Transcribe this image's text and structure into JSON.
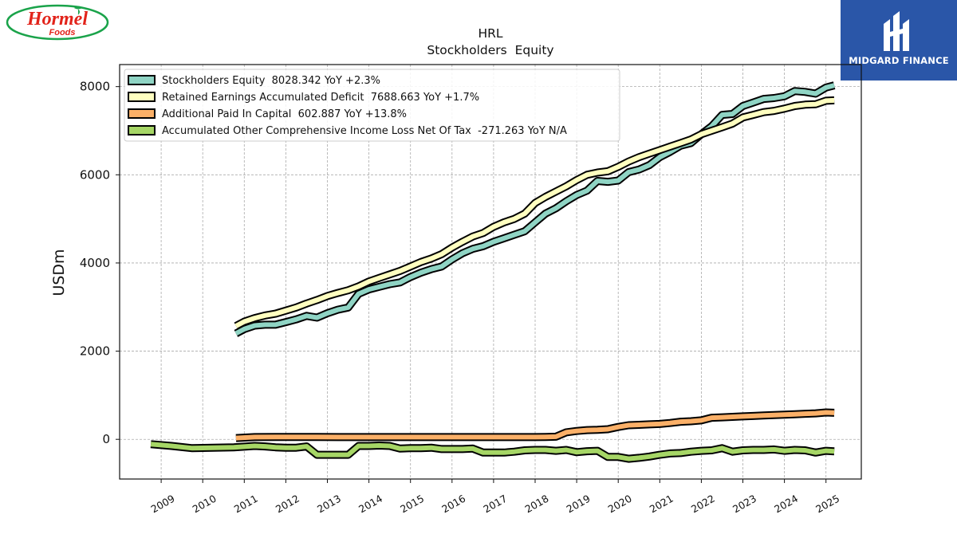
{
  "branding": {
    "left_logo_top": "Hormel",
    "left_logo_bottom": "Foods",
    "right_logo_name": "MIDGARD FINANCE",
    "left_logo_color": "#e2231a",
    "left_logo_ring": "#1aa34a",
    "right_logo_bg": "#2a56a8"
  },
  "chart_data": {
    "type": "line",
    "title": "HRL",
    "subtitle": "Stockholders  Equity",
    "ylabel": "USDm",
    "xlabel": "",
    "ylim": [
      -900,
      8500
    ],
    "yticks": [
      0,
      2000,
      4000,
      6000,
      8000
    ],
    "xlim": [
      2008.0,
      2025.85
    ],
    "xticks": [
      "2009",
      "2010",
      "2011",
      "2012",
      "2013",
      "2014",
      "2015",
      "2016",
      "2017",
      "2018",
      "2019",
      "2020",
      "2021",
      "2022",
      "2023",
      "2024",
      "2025"
    ],
    "grid": true,
    "legend_position": "top-left",
    "series": [
      {
        "name": "Stockholders Equity  8028.342 YoY +2.3%",
        "color": "#8fd4c4",
        "x": [
          2010.8,
          2011.0,
          2011.25,
          2011.5,
          2011.75,
          2012.0,
          2012.25,
          2012.5,
          2012.75,
          2013.0,
          2013.25,
          2013.5,
          2013.75,
          2014.0,
          2014.25,
          2014.5,
          2014.75,
          2015.0,
          2015.25,
          2015.5,
          2015.75,
          2016.0,
          2016.25,
          2016.5,
          2016.75,
          2017.0,
          2017.25,
          2017.5,
          2017.75,
          2018.0,
          2018.25,
          2018.5,
          2018.75,
          2019.0,
          2019.25,
          2019.5,
          2019.75,
          2020.0,
          2020.25,
          2020.5,
          2020.75,
          2021.0,
          2021.25,
          2021.5,
          2021.75,
          2022.0,
          2022.25,
          2022.5,
          2022.75,
          2023.0,
          2023.25,
          2023.5,
          2023.75,
          2024.0,
          2024.25,
          2024.5,
          2024.75,
          2025.0,
          2025.2
        ],
        "y": [
          2400,
          2500,
          2580,
          2600,
          2600,
          2660,
          2720,
          2800,
          2760,
          2860,
          2940,
          2990,
          3300,
          3400,
          3460,
          3520,
          3560,
          3680,
          3780,
          3860,
          3920,
          4080,
          4220,
          4320,
          4380,
          4480,
          4560,
          4640,
          4720,
          4920,
          5120,
          5240,
          5400,
          5540,
          5640,
          5860,
          5840,
          5870,
          6060,
          6120,
          6220,
          6400,
          6520,
          6660,
          6720,
          6920,
          7100,
          7360,
          7380,
          7560,
          7640,
          7720,
          7740,
          7780,
          7900,
          7880,
          7840,
          7980,
          8028
        ]
      },
      {
        "name": "Retained Earnings Accumulated Deficit  7688.663 YoY +1.7%",
        "color": "#ffffc0",
        "x": [
          2010.8,
          2011.0,
          2011.25,
          2011.5,
          2011.75,
          2012.0,
          2012.25,
          2012.5,
          2012.75,
          2013.0,
          2013.25,
          2013.5,
          2013.75,
          2014.0,
          2014.25,
          2014.5,
          2014.75,
          2015.0,
          2015.25,
          2015.5,
          2015.75,
          2016.0,
          2016.25,
          2016.5,
          2016.75,
          2017.0,
          2017.25,
          2017.5,
          2017.75,
          2018.0,
          2018.25,
          2018.5,
          2018.75,
          2019.0,
          2019.25,
          2019.5,
          2019.75,
          2020.0,
          2020.25,
          2020.5,
          2020.75,
          2021.0,
          2021.25,
          2021.5,
          2021.75,
          2022.0,
          2022.25,
          2022.5,
          2022.75,
          2023.0,
          2023.25,
          2023.5,
          2023.75,
          2024.0,
          2024.25,
          2024.5,
          2024.75,
          2025.0,
          2025.2
        ],
        "y": [
          2570,
          2670,
          2750,
          2810,
          2850,
          2920,
          2990,
          3080,
          3160,
          3250,
          3320,
          3380,
          3470,
          3580,
          3660,
          3740,
          3820,
          3920,
          4020,
          4100,
          4200,
          4350,
          4480,
          4600,
          4680,
          4820,
          4920,
          5000,
          5120,
          5360,
          5500,
          5620,
          5740,
          5880,
          6000,
          6050,
          6080,
          6180,
          6300,
          6400,
          6480,
          6560,
          6640,
          6720,
          6800,
          6920,
          7000,
          7080,
          7160,
          7300,
          7360,
          7420,
          7450,
          7500,
          7560,
          7590,
          7600,
          7680,
          7689
        ]
      },
      {
        "name": "Additional Paid In Capital  602.887 YoY +13.8%",
        "color": "#fbb068",
        "x": [
          2010.8,
          2011.25,
          2011.75,
          2012.25,
          2012.75,
          2013.25,
          2013.75,
          2014.25,
          2014.75,
          2015.25,
          2015.75,
          2016.25,
          2016.75,
          2017.25,
          2017.75,
          2018.0,
          2018.25,
          2018.5,
          2018.75,
          2019.0,
          2019.25,
          2019.5,
          2019.75,
          2020.0,
          2020.25,
          2020.5,
          2020.75,
          2021.0,
          2021.25,
          2021.5,
          2021.75,
          2022.0,
          2022.25,
          2022.5,
          2022.75,
          2023.0,
          2023.25,
          2023.5,
          2023.75,
          2024.0,
          2024.25,
          2024.5,
          2024.75,
          2025.0,
          2025.2
        ],
        "y": [
          30,
          50,
          55,
          55,
          55,
          50,
          50,
          50,
          50,
          50,
          50,
          50,
          50,
          50,
          50,
          50,
          55,
          60,
          160,
          190,
          210,
          215,
          230,
          280,
          320,
          330,
          340,
          350,
          370,
          400,
          410,
          430,
          490,
          500,
          510,
          520,
          530,
          540,
          550,
          560,
          570,
          580,
          590,
          610,
          603
        ]
      },
      {
        "name": "Accumulated Other Comprehensive Income Loss Net Of Tax  -271.263 YoY N/A",
        "color": "#a6d666",
        "x": [
          2008.75,
          2009.25,
          2009.75,
          2010.25,
          2010.75,
          2011.25,
          2011.5,
          2011.75,
          2012.0,
          2012.25,
          2012.5,
          2012.75,
          2013.0,
          2013.25,
          2013.5,
          2013.75,
          2014.0,
          2014.25,
          2014.5,
          2014.75,
          2015.0,
          2015.25,
          2015.5,
          2015.75,
          2016.0,
          2016.25,
          2016.5,
          2016.75,
          2017.0,
          2017.25,
          2017.5,
          2017.75,
          2018.0,
          2018.25,
          2018.5,
          2018.75,
          2019.0,
          2019.25,
          2019.5,
          2019.75,
          2020.0,
          2020.25,
          2020.5,
          2020.75,
          2021.0,
          2021.25,
          2021.5,
          2021.75,
          2022.0,
          2022.25,
          2022.5,
          2022.75,
          2023.0,
          2023.25,
          2023.5,
          2023.75,
          2024.0,
          2024.25,
          2024.5,
          2024.75,
          2025.0,
          2025.2
        ],
        "y": [
          -110,
          -150,
          -200,
          -190,
          -180,
          -150,
          -160,
          -180,
          -190,
          -190,
          -160,
          -350,
          -350,
          -350,
          -350,
          -150,
          -150,
          -140,
          -150,
          -210,
          -200,
          -200,
          -190,
          -220,
          -220,
          -220,
          -210,
          -300,
          -300,
          -300,
          -280,
          -250,
          -240,
          -240,
          -260,
          -240,
          -290,
          -270,
          -260,
          -400,
          -400,
          -440,
          -420,
          -390,
          -350,
          -320,
          -310,
          -280,
          -260,
          -250,
          -200,
          -280,
          -250,
          -240,
          -240,
          -230,
          -260,
          -240,
          -250,
          -300,
          -260,
          -271
        ]
      }
    ]
  }
}
